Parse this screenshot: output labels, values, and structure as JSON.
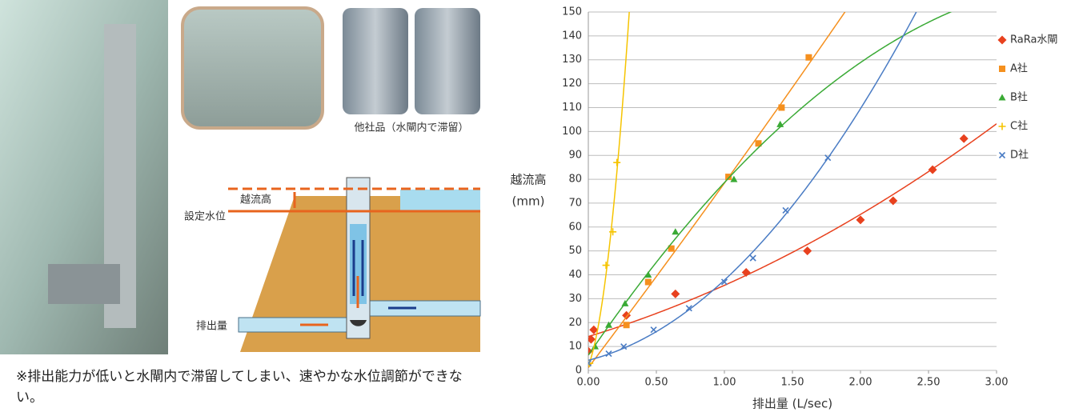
{
  "figure": {
    "photo_caption": "他社品（水閘内で滞留）",
    "diagram": {
      "overflow_height": "越流高",
      "set_level": "設定水位",
      "discharge": "排出量"
    },
    "note": "※排出能力が低いと水閘内で滞留してしまい、速やかな水位調節ができない。"
  },
  "chart_data": {
    "type": "scatter",
    "xlabel": "排出量 (L/sec)",
    "ylabel": [
      "越流高",
      "(mm)"
    ],
    "xlim": [
      0,
      3
    ],
    "ylim": [
      0,
      150
    ],
    "xticks": [
      {
        "value": 0,
        "label": "0.00"
      },
      {
        "value": 0.5,
        "label": "0.50"
      },
      {
        "value": 1,
        "label": "1.00"
      },
      {
        "value": 1.5,
        "label": "1.50"
      },
      {
        "value": 2,
        "label": "2.00"
      },
      {
        "value": 2.5,
        "label": "2.50"
      },
      {
        "value": 3,
        "label": "3.00"
      }
    ],
    "yticks": [
      0,
      10,
      20,
      30,
      40,
      50,
      60,
      70,
      80,
      90,
      100,
      110,
      120,
      130,
      140,
      150
    ],
    "grid": true,
    "trendline": "quadratic",
    "legend": "right",
    "series": [
      {
        "name": "RaRa水閘",
        "color": "#e8411e",
        "marker": "diamond",
        "x": [
          0.0,
          0.02,
          0.04,
          0.28,
          0.64,
          1.16,
          1.61,
          2.0,
          2.24,
          2.53,
          2.76
        ],
        "values": [
          8,
          13,
          17,
          23,
          32,
          41,
          50,
          63,
          71,
          84,
          97
        ]
      },
      {
        "name": "A社",
        "color": "#f5901e",
        "marker": "square",
        "x": [
          0.28,
          0.44,
          0.61,
          1.03,
          1.25,
          1.42,
          1.62
        ],
        "values": [
          19,
          37,
          51,
          81,
          95,
          110,
          131
        ]
      },
      {
        "name": "B社",
        "color": "#3aaa35",
        "marker": "triangle",
        "x": [
          0.05,
          0.15,
          0.27,
          0.44,
          0.64,
          1.07,
          1.41
        ],
        "values": [
          10,
          19,
          28,
          40,
          58,
          80,
          103
        ]
      },
      {
        "name": "C社",
        "color": "#f6c400",
        "marker": "plus",
        "x": [
          0.01,
          0.13,
          0.18,
          0.21
        ],
        "values": [
          3,
          44,
          58,
          87
        ]
      },
      {
        "name": "D社",
        "color": "#4a7cc4",
        "marker": "cross",
        "x": [
          0.0,
          0.15,
          0.26,
          0.48,
          0.74,
          1.0,
          1.21,
          1.45,
          1.76
        ],
        "values": [
          3,
          7,
          10,
          17,
          26,
          37,
          47,
          67,
          89
        ]
      }
    ]
  }
}
